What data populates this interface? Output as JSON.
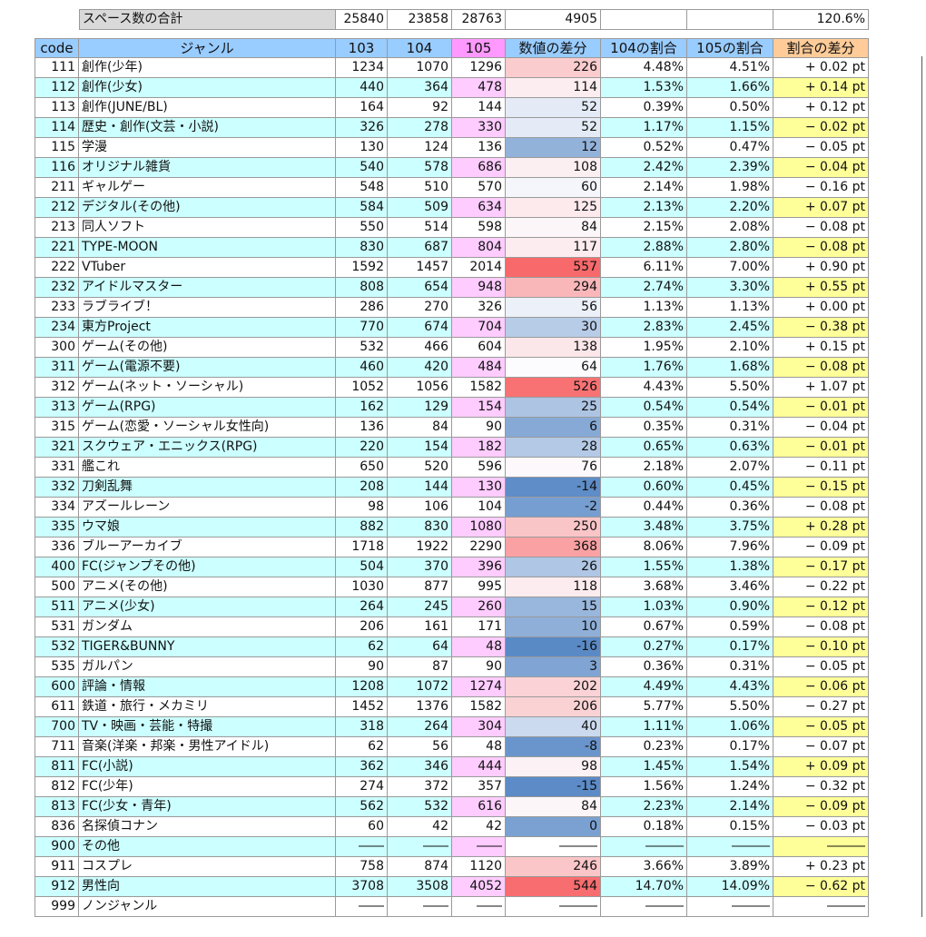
{
  "summary": {
    "label": "スペース数の合計",
    "values": [
      25840,
      23858,
      28763,
      4905
    ],
    "ratio": "120.6%"
  },
  "table": {
    "header": [
      "code",
      "ジャンル",
      "103",
      "104",
      "105",
      "数値の差分",
      "104の割合",
      "105の割合",
      "割合の差分"
    ],
    "rows": [
      [
        111,
        "創作(少年)",
        1234,
        1070,
        1296,
        226,
        "4.48%",
        "4.51%",
        "+ 0.02 pt"
      ],
      [
        112,
        "創作(少女)",
        440,
        364,
        478,
        114,
        "1.53%",
        "1.66%",
        "+ 0.14 pt"
      ],
      [
        113,
        "創作(JUNE/BL)",
        164,
        92,
        144,
        52,
        "0.39%",
        "0.50%",
        "+ 0.12 pt"
      ],
      [
        114,
        "歴史・創作(文芸・小説)",
        326,
        278,
        330,
        52,
        "1.17%",
        "1.15%",
        "− 0.02 pt"
      ],
      [
        115,
        "学漫",
        130,
        124,
        136,
        12,
        "0.52%",
        "0.47%",
        "− 0.05 pt"
      ],
      [
        116,
        "オリジナル雑貨",
        540,
        578,
        686,
        108,
        "2.42%",
        "2.39%",
        "− 0.04 pt"
      ],
      [
        211,
        "ギャルゲー",
        548,
        510,
        570,
        60,
        "2.14%",
        "1.98%",
        "− 0.16 pt"
      ],
      [
        212,
        "デジタル(その他)",
        584,
        509,
        634,
        125,
        "2.13%",
        "2.20%",
        "+ 0.07 pt"
      ],
      [
        213,
        "同人ソフト",
        550,
        514,
        598,
        84,
        "2.15%",
        "2.08%",
        "− 0.08 pt"
      ],
      [
        221,
        "TYPE-MOON",
        830,
        687,
        804,
        117,
        "2.88%",
        "2.80%",
        "− 0.08 pt"
      ],
      [
        222,
        "VTuber",
        1592,
        1457,
        2014,
        557,
        "6.11%",
        "7.00%",
        "+ 0.90 pt"
      ],
      [
        232,
        "アイドルマスター",
        808,
        654,
        948,
        294,
        "2.74%",
        "3.30%",
        "+ 0.55 pt"
      ],
      [
        233,
        "ラブライブ！",
        286,
        270,
        326,
        56,
        "1.13%",
        "1.13%",
        "+ 0.00 pt"
      ],
      [
        234,
        "東方Project",
        770,
        674,
        704,
        30,
        "2.83%",
        "2.45%",
        "− 0.38 pt"
      ],
      [
        300,
        "ゲーム(その他)",
        532,
        466,
        604,
        138,
        "1.95%",
        "2.10%",
        "+ 0.15 pt"
      ],
      [
        311,
        "ゲーム(電源不要)",
        460,
        420,
        484,
        64,
        "1.76%",
        "1.68%",
        "− 0.08 pt"
      ],
      [
        312,
        "ゲーム(ネット・ソーシャル)",
        1052,
        1056,
        1582,
        526,
        "4.43%",
        "5.50%",
        "+ 1.07 pt"
      ],
      [
        313,
        "ゲーム(RPG)",
        162,
        129,
        154,
        25,
        "0.54%",
        "0.54%",
        "− 0.01 pt"
      ],
      [
        315,
        "ゲーム(恋愛・ソーシャル女性向)",
        136,
        84,
        90,
        6,
        "0.35%",
        "0.31%",
        "− 0.04 pt"
      ],
      [
        321,
        "スクウェア・エニックス(RPG)",
        220,
        154,
        182,
        28,
        "0.65%",
        "0.63%",
        "− 0.01 pt"
      ],
      [
        331,
        "艦これ",
        650,
        520,
        596,
        76,
        "2.18%",
        "2.07%",
        "− 0.11 pt"
      ],
      [
        332,
        "刀剣乱舞",
        208,
        144,
        130,
        -14,
        "0.60%",
        "0.45%",
        "− 0.15 pt"
      ],
      [
        334,
        "アズールレーン",
        98,
        106,
        104,
        -2,
        "0.44%",
        "0.36%",
        "− 0.08 pt"
      ],
      [
        335,
        "ウマ娘",
        882,
        830,
        1080,
        250,
        "3.48%",
        "3.75%",
        "+ 0.28 pt"
      ],
      [
        336,
        "ブルーアーカイブ",
        1718,
        1922,
        2290,
        368,
        "8.06%",
        "7.96%",
        "− 0.09 pt"
      ],
      [
        400,
        "FC(ジャンプその他)",
        504,
        370,
        396,
        26,
        "1.55%",
        "1.38%",
        "− 0.17 pt"
      ],
      [
        500,
        "アニメ(その他)",
        1030,
        877,
        995,
        118,
        "3.68%",
        "3.46%",
        "− 0.22 pt"
      ],
      [
        511,
        "アニメ(少女)",
        264,
        245,
        260,
        15,
        "1.03%",
        "0.90%",
        "− 0.12 pt"
      ],
      [
        531,
        "ガンダム",
        206,
        161,
        171,
        10,
        "0.67%",
        "0.59%",
        "− 0.08 pt"
      ],
      [
        532,
        "TIGER&BUNNY",
        62,
        64,
        48,
        -16,
        "0.27%",
        "0.17%",
        "− 0.10 pt"
      ],
      [
        535,
        "ガルパン",
        90,
        87,
        90,
        3,
        "0.36%",
        "0.31%",
        "− 0.05 pt"
      ],
      [
        600,
        "評論・情報",
        1208,
        1072,
        1274,
        202,
        "4.49%",
        "4.43%",
        "− 0.06 pt"
      ],
      [
        611,
        "鉄道・旅行・メカミリ",
        1452,
        1376,
        1582,
        206,
        "5.77%",
        "5.50%",
        "− 0.27 pt"
      ],
      [
        700,
        "TV・映画・芸能・特撮",
        318,
        264,
        304,
        40,
        "1.11%",
        "1.06%",
        "− 0.05 pt"
      ],
      [
        711,
        "音楽(洋楽・邦楽・男性アイドル)",
        62,
        56,
        48,
        -8,
        "0.23%",
        "0.17%",
        "− 0.07 pt"
      ],
      [
        811,
        "FC(小説)",
        362,
        346,
        444,
        98,
        "1.45%",
        "1.54%",
        "+ 0.09 pt"
      ],
      [
        812,
        "FC(少年)",
        274,
        372,
        357,
        -15,
        "1.56%",
        "1.24%",
        "− 0.32 pt"
      ],
      [
        813,
        "FC(少女・青年)",
        562,
        532,
        616,
        84,
        "2.23%",
        "2.14%",
        "− 0.09 pt"
      ],
      [
        836,
        "名探偵コナン",
        60,
        42,
        42,
        0,
        "0.18%",
        "0.15%",
        "− 0.03 pt"
      ],
      [
        900,
        "その他",
        "――",
        "――",
        "――",
        "―――",
        "―――",
        "―――",
        "―――"
      ],
      [
        911,
        "コスプレ",
        758,
        874,
        1120,
        246,
        "3.66%",
        "3.89%",
        "+ 0.23 pt"
      ],
      [
        912,
        "男性向",
        3708,
        3508,
        4052,
        544,
        "14.70%",
        "14.09%",
        "− 0.62 pt"
      ],
      [
        999,
        "ノンジャンル",
        "――",
        "――",
        "――",
        "―――",
        "―――",
        "―――",
        "―――"
      ]
    ]
  }
}
